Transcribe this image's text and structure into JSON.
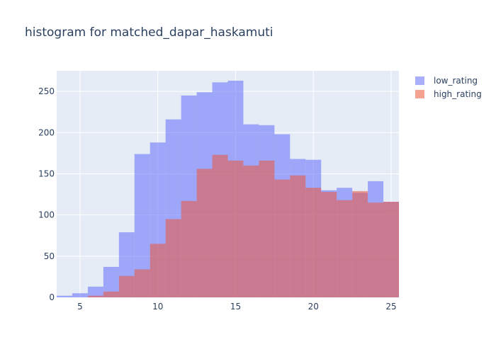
{
  "chart_data": {
    "type": "bar",
    "title": "histogram for matched_dapar_haskamuti",
    "xlabel": "",
    "ylabel": "",
    "barmode": "overlay",
    "bin_start": 3.5,
    "bin_size": 1,
    "xlim": [
      3.5,
      25.5
    ],
    "ylim": [
      0,
      275
    ],
    "x_ticks": [
      5,
      10,
      15,
      20,
      25
    ],
    "y_ticks": [
      0,
      50,
      100,
      150,
      200,
      250
    ],
    "grid": true,
    "legend_position": "top-right",
    "series": [
      {
        "name": "low_rating",
        "color": "#636efa",
        "values": [
          2,
          5,
          13,
          37,
          79,
          174,
          188,
          216,
          245,
          249,
          261,
          263,
          210,
          209,
          198,
          168,
          167,
          130,
          133,
          127,
          141,
          116
        ]
      },
      {
        "name": "high_rating",
        "color": "#ef553b",
        "values": [
          0,
          0,
          2,
          7,
          26,
          34,
          65,
          95,
          117,
          156,
          173,
          166,
          160,
          166,
          143,
          148,
          133,
          128,
          118,
          129,
          115,
          116
        ]
      }
    ]
  }
}
